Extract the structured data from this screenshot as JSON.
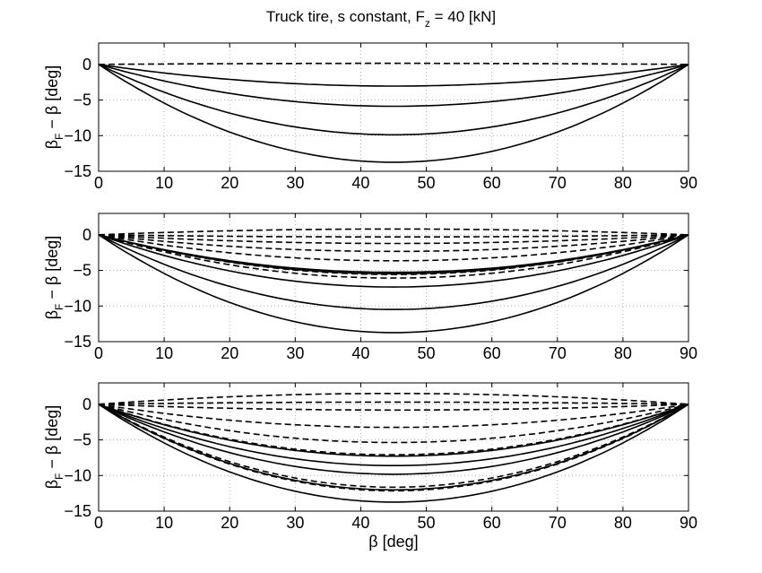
{
  "figure": {
    "title_main": "Truck tire, s constant, F",
    "title_sub": "z",
    "title_tail": " = 40 [kN]"
  },
  "chart_data": [
    {
      "type": "line",
      "ylabel_main": "β",
      "ylabel_sub": "F",
      "ylabel_tail": " − β [deg]",
      "xlabel": "",
      "xlim": [
        0,
        90
      ],
      "ylim": [
        -15,
        3
      ],
      "xticks": [
        "0",
        "10",
        "20",
        "30",
        "40",
        "50",
        "60",
        "70",
        "80",
        "90"
      ],
      "yticks": [
        "0",
        "−5",
        "−10",
        "−15"
      ],
      "grid": true,
      "series": [
        {
          "style": "dashed",
          "amp": 0.15,
          "peak": 50
        },
        {
          "style": "solid",
          "amp": -3.0,
          "peak": 50
        },
        {
          "style": "solid",
          "amp": -5.8,
          "peak": 50
        },
        {
          "style": "solid",
          "amp": -9.7,
          "peak": 51
        },
        {
          "style": "solid",
          "amp": -13.4,
          "peak": 52
        }
      ]
    },
    {
      "type": "line",
      "ylabel_main": "β",
      "ylabel_sub": "F",
      "ylabel_tail": " − β [deg]",
      "xlabel": "",
      "xlim": [
        0,
        90
      ],
      "ylim": [
        -15,
        3
      ],
      "xticks": [
        "0",
        "10",
        "20",
        "30",
        "40",
        "50",
        "60",
        "70",
        "80",
        "90"
      ],
      "yticks": [
        "0",
        "−5",
        "−10",
        "−15"
      ],
      "grid": true,
      "series": [
        {
          "style": "dashed",
          "amp": 0.8,
          "peak": 50
        },
        {
          "style": "dashed",
          "amp": -0.3,
          "peak": 50
        },
        {
          "style": "dashed",
          "amp": -1.2,
          "peak": 50
        },
        {
          "style": "dashed",
          "amp": -2.3,
          "peak": 50
        },
        {
          "style": "dashed",
          "amp": -3.6,
          "peak": 50
        },
        {
          "style": "dashed",
          "amp": -5.5,
          "peak": 50
        },
        {
          "style": "dashed",
          "amp": -6.0,
          "peak": 50
        },
        {
          "style": "solid",
          "amp": -5.2,
          "peak": 50
        },
        {
          "style": "solid",
          "amp": -5.4,
          "peak": 50
        },
        {
          "style": "solid",
          "amp": -7.2,
          "peak": 51
        },
        {
          "style": "solid",
          "amp": -10.3,
          "peak": 51
        },
        {
          "style": "solid",
          "amp": -13.4,
          "peak": 52
        }
      ]
    },
    {
      "type": "line",
      "ylabel_main": "β",
      "ylabel_sub": "F",
      "ylabel_tail": " − β [deg]",
      "xlabel": "β [deg]",
      "xlim": [
        0,
        90
      ],
      "ylim": [
        -15,
        3
      ],
      "xticks": [
        "0",
        "10",
        "20",
        "30",
        "40",
        "50",
        "60",
        "70",
        "80",
        "90"
      ],
      "yticks": [
        "0",
        "−5",
        "−10",
        "−15"
      ],
      "grid": true,
      "series": [
        {
          "style": "dashed",
          "amp": 1.5,
          "peak": 50
        },
        {
          "style": "dashed",
          "amp": 0.3,
          "peak": 50
        },
        {
          "style": "dashed",
          "amp": -0.8,
          "peak": 50
        },
        {
          "style": "dashed",
          "amp": -3.2,
          "peak": 50
        },
        {
          "style": "dashed",
          "amp": -5.3,
          "peak": 50
        },
        {
          "style": "dashed",
          "amp": -7.0,
          "peak": 50
        },
        {
          "style": "dashed",
          "amp": -11.5,
          "peak": 50
        },
        {
          "style": "dashed",
          "amp": -12.0,
          "peak": 50
        },
        {
          "style": "solid",
          "amp": -7.2,
          "peak": 50
        },
        {
          "style": "solid",
          "amp": -8.5,
          "peak": 50
        },
        {
          "style": "solid",
          "amp": -9.7,
          "peak": 50
        },
        {
          "style": "solid",
          "amp": -11.8,
          "peak": 51
        },
        {
          "style": "solid",
          "amp": -13.4,
          "peak": 52
        }
      ]
    }
  ]
}
